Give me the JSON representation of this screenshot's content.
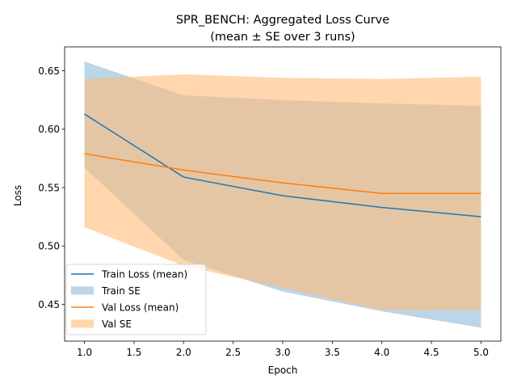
{
  "chart_data": {
    "type": "line",
    "title": "SPR_BENCH: Aggregated Loss Curve",
    "subtitle": "(mean ± SE over 3 runs)",
    "xlabel": "Epoch",
    "ylabel": "Loss",
    "xlim": [
      0.8,
      5.2
    ],
    "ylim": [
      0.4185,
      0.6705
    ],
    "xticks": [
      1.0,
      1.5,
      2.0,
      2.5,
      3.0,
      3.5,
      4.0,
      4.5,
      5.0
    ],
    "xtick_labels": [
      "1.0",
      "1.5",
      "2.0",
      "2.5",
      "3.0",
      "3.5",
      "4.0",
      "4.5",
      "5.0"
    ],
    "yticks": [
      0.45,
      0.5,
      0.55,
      0.6,
      0.65
    ],
    "ytick_labels": [
      "0.45",
      "0.50",
      "0.55",
      "0.60",
      "0.65"
    ],
    "grid": false,
    "legend_position": "lower-left",
    "x": [
      1,
      2,
      3,
      4,
      5
    ],
    "series": [
      {
        "name": "Train Loss (mean)",
        "band_name": "Train SE",
        "color": "#1f77b4",
        "band_color": "#1f77b4",
        "values": [
          0.613,
          0.559,
          0.543,
          0.533,
          0.525
        ],
        "upper": [
          0.658,
          0.629,
          0.625,
          0.622,
          0.62
        ],
        "lower": [
          0.567,
          0.488,
          0.461,
          0.444,
          0.43
        ]
      },
      {
        "name": "Val Loss (mean)",
        "band_name": "Val SE",
        "color": "#ff7f0e",
        "band_color": "#ffbb78",
        "values": [
          0.579,
          0.565,
          0.554,
          0.545,
          0.545
        ],
        "upper": [
          0.643,
          0.647,
          0.644,
          0.643,
          0.645
        ],
        "lower": [
          0.516,
          0.483,
          0.464,
          0.445,
          0.445
        ]
      }
    ]
  }
}
